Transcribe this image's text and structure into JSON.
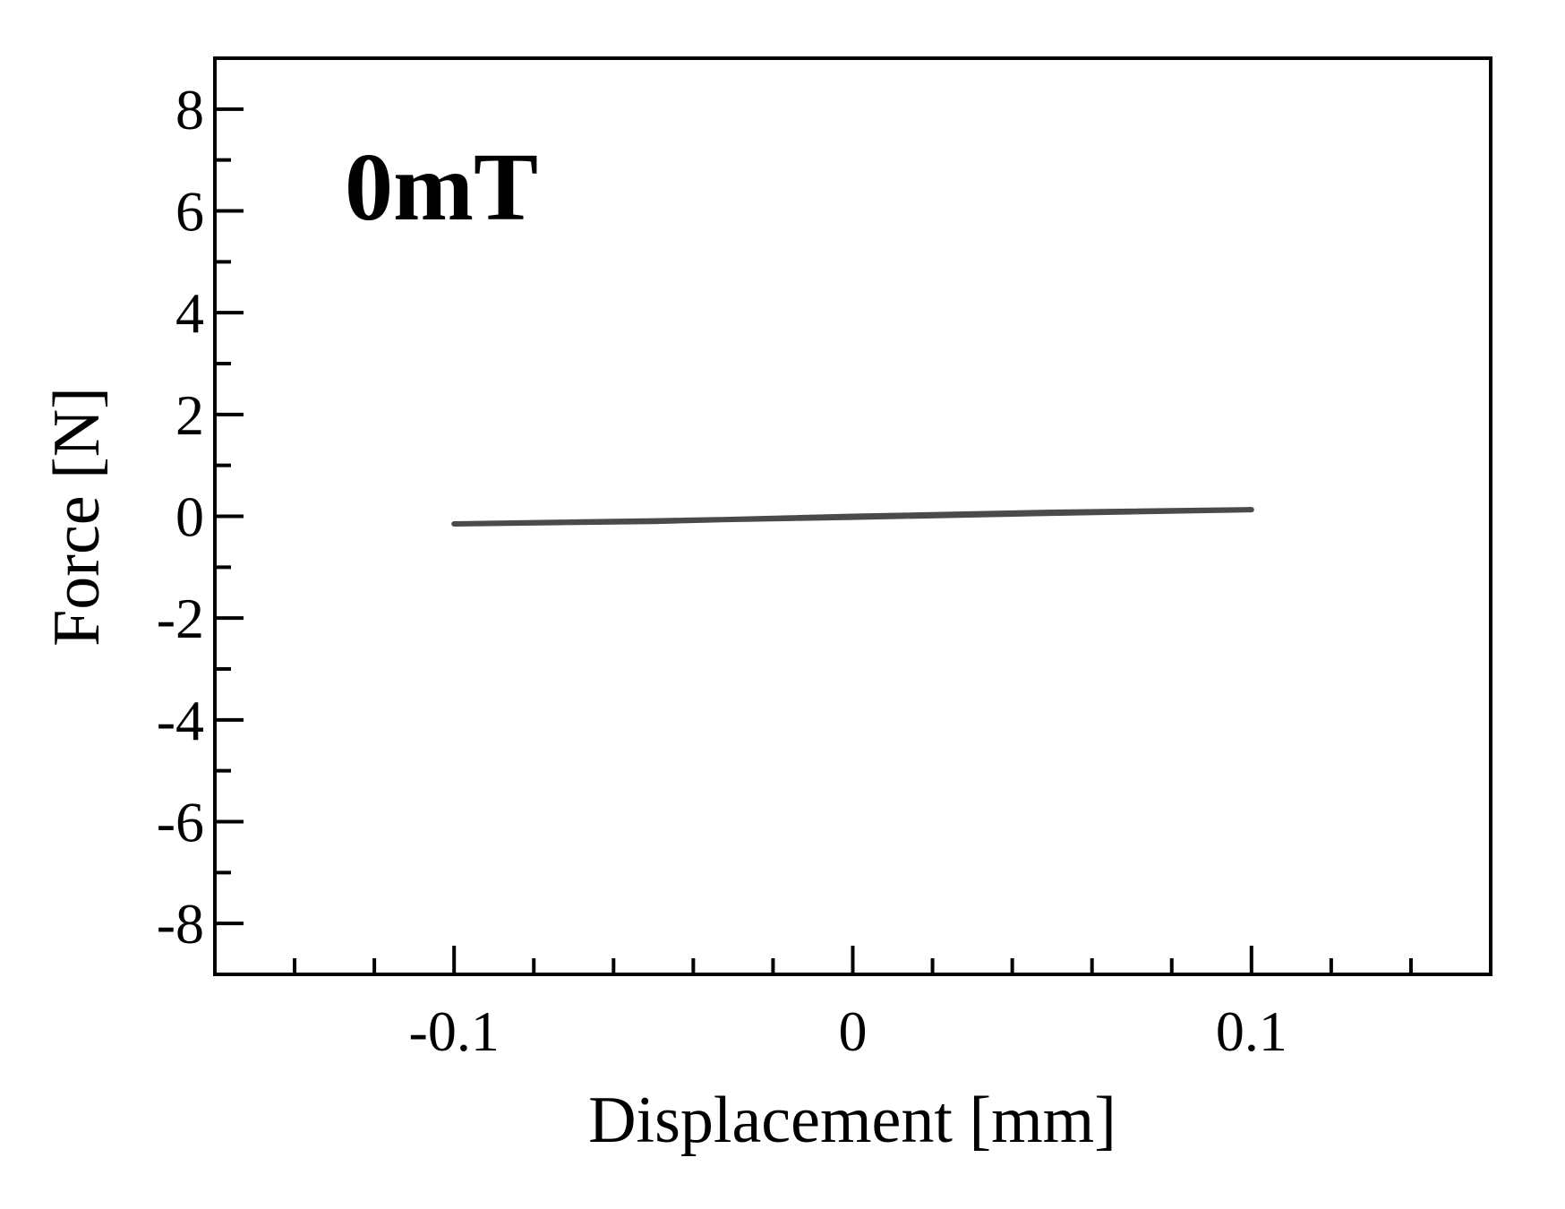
{
  "chart_data": {
    "type": "line",
    "title": "",
    "annotation": "0mT",
    "xlabel": "Displacement [mm]",
    "ylabel": "Force [N]",
    "xlim": [
      -0.16,
      0.16
    ],
    "ylim": [
      -9,
      9
    ],
    "x_ticks": [
      -0.1,
      0,
      0.1
    ],
    "x_tick_labels": [
      "-0.1",
      "0",
      "0.1"
    ],
    "x_minor_step": 0.02,
    "y_ticks": [
      -8,
      -6,
      -4,
      -2,
      0,
      2,
      4,
      6,
      8
    ],
    "y_tick_labels": [
      "-8",
      "-6",
      "-4",
      "-2",
      "0",
      "2",
      "4",
      "6",
      "8"
    ],
    "y_minor_step": 1,
    "grid": false,
    "colors": {
      "series": "#4a4a4a",
      "axes": "#000000"
    },
    "series": [
      {
        "x": [
          -0.1,
          -0.05,
          0,
          0.05,
          0.1,
          0.05,
          0,
          -0.05,
          -0.1
        ],
        "y": [
          -0.15,
          -0.1,
          0.0,
          0.08,
          0.13,
          0.06,
          -0.02,
          -0.09,
          -0.15
        ]
      }
    ]
  }
}
